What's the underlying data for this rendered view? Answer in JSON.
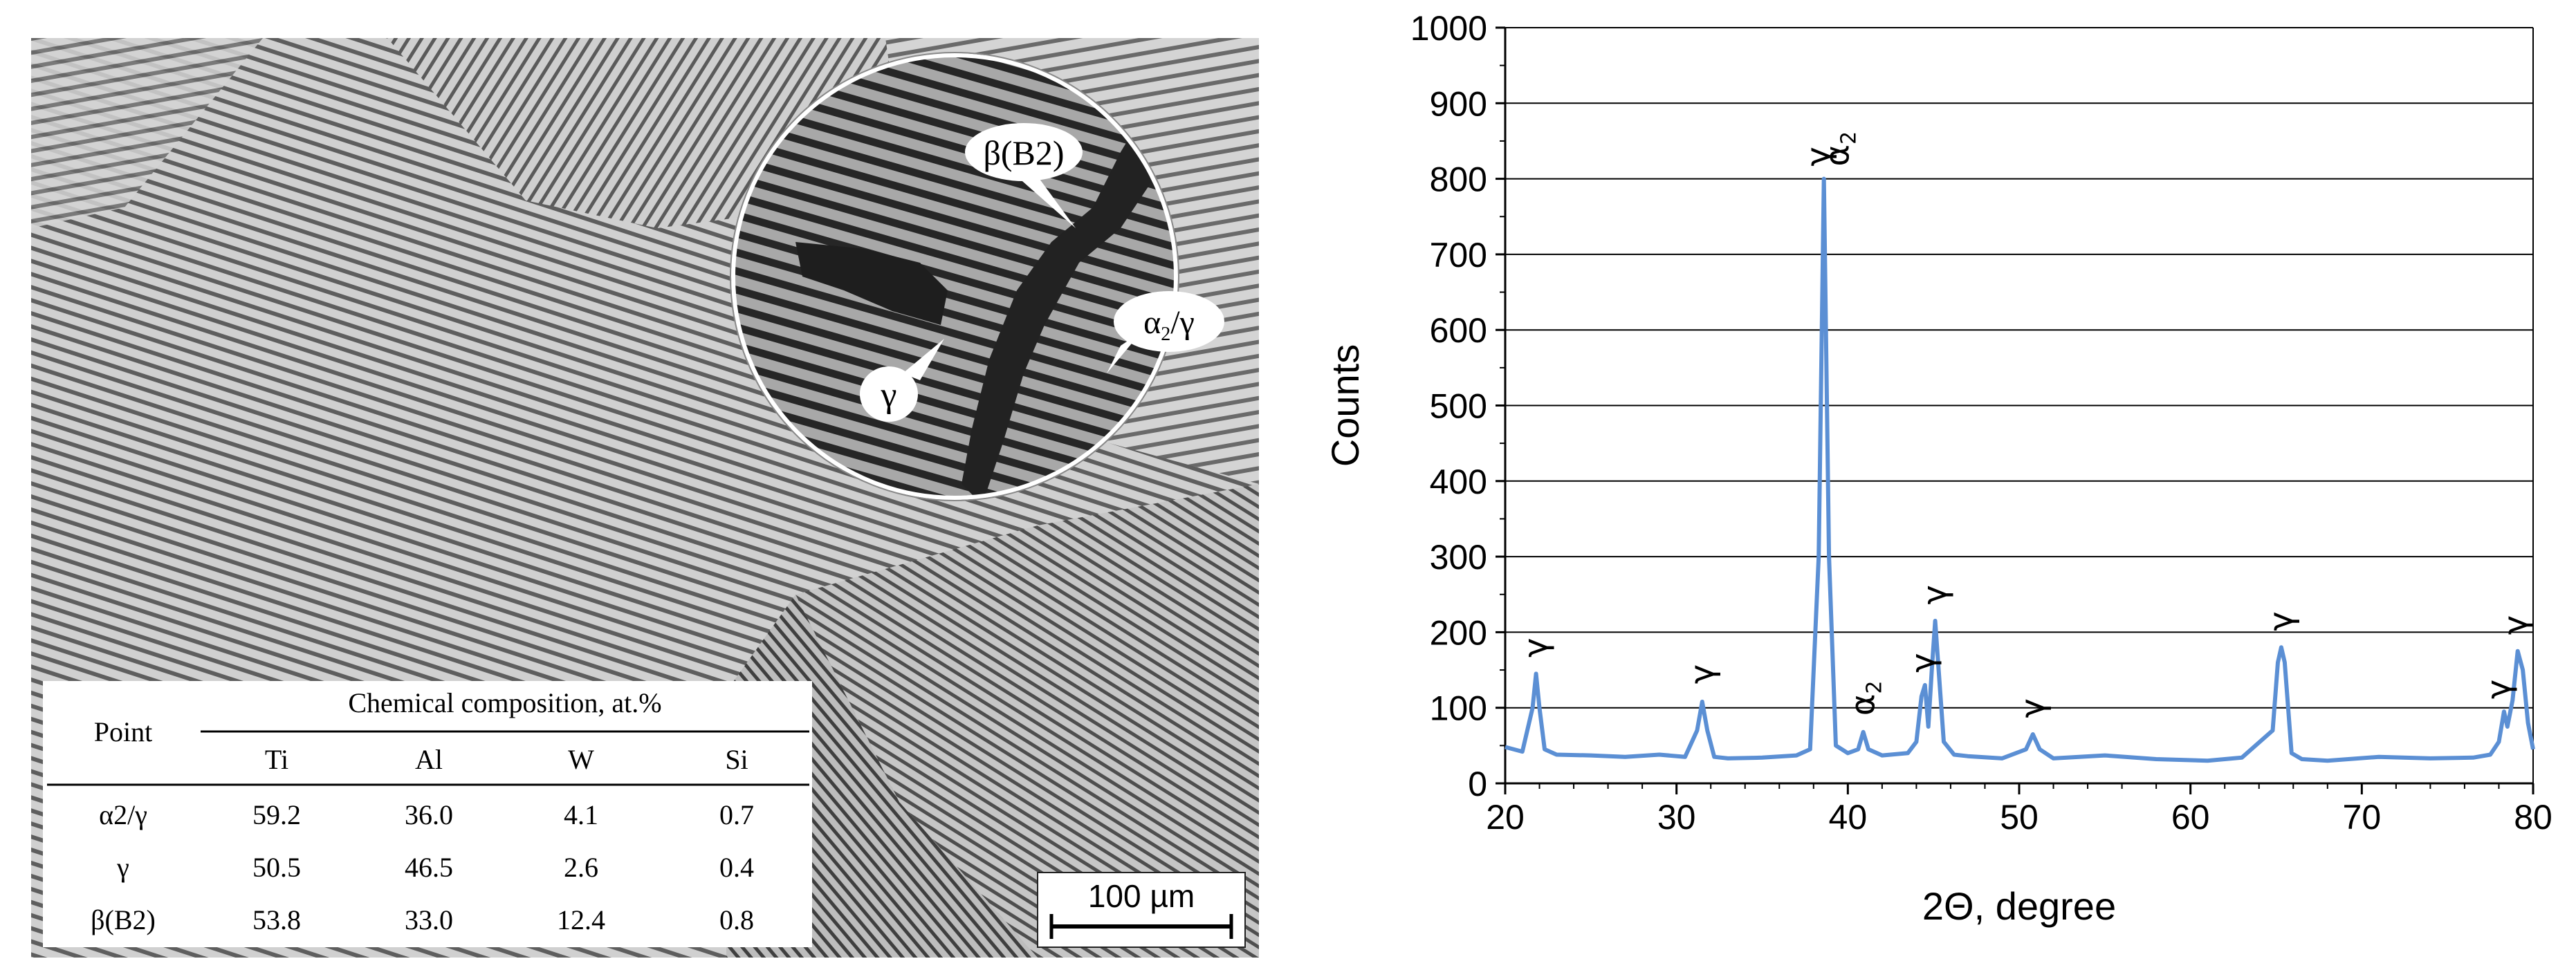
{
  "micrograph": {
    "inset_labels": {
      "beta": "β(B2)",
      "alpha2_gamma_a": "α",
      "alpha2_gamma_sub": "2",
      "alpha2_gamma_b": "/γ",
      "gamma": "γ"
    },
    "scale_bar": "100 µm",
    "table": {
      "col_point": "Point",
      "group_header": "Chemical composition, at.%",
      "elements": [
        "Ti",
        "Al",
        "W",
        "Si"
      ],
      "rows": [
        {
          "point": "α2/γ",
          "values": [
            "59.2",
            "36.0",
            "4.1",
            "0.7"
          ]
        },
        {
          "point": "γ",
          "values": [
            "50.5",
            "46.5",
            "2.6",
            "0.4"
          ]
        },
        {
          "point": "β(B2)",
          "values": [
            "53.8",
            "33.0",
            "12.4",
            "0.8"
          ]
        }
      ]
    }
  },
  "chart_data": {
    "type": "line",
    "xlabel": "2Θ, degree",
    "ylabel": "Counts",
    "xlim": [
      20,
      80
    ],
    "ylim": [
      0,
      1000
    ],
    "xticks": [
      20,
      30,
      40,
      50,
      60,
      70,
      80
    ],
    "yticks": [
      0,
      100,
      200,
      300,
      400,
      500,
      600,
      700,
      800,
      900,
      1000
    ],
    "grid": "horizontal",
    "color": "#5b8fd4",
    "series": [
      {
        "x": [
          20,
          21,
          21.6,
          21.8,
          22,
          22.3,
          23,
          25,
          27,
          29,
          30.5,
          31.2,
          31.5,
          31.8,
          32.2,
          33,
          35,
          37,
          37.8,
          38.3,
          38.6,
          38.9,
          39.3,
          40,
          40.6,
          40.9,
          41.2,
          42,
          43.5,
          44,
          44.3,
          44.5,
          44.7,
          44.9,
          45.1,
          45.3,
          45.6,
          46.2,
          47,
          49,
          50.4,
          50.8,
          51.2,
          52,
          55,
          58,
          61,
          63,
          64.8,
          65.1,
          65.3,
          65.5,
          65.9,
          66.5,
          68,
          71,
          74,
          76.5,
          77.5,
          78,
          78.3,
          78.5,
          78.8,
          79.1,
          79.4,
          79.7,
          80
        ],
        "y": [
          48,
          42,
          100,
          145,
          100,
          45,
          38,
          37,
          35,
          38,
          35,
          70,
          108,
          70,
          35,
          33,
          34,
          37,
          45,
          300,
          800,
          300,
          50,
          40,
          45,
          68,
          45,
          37,
          40,
          55,
          115,
          130,
          75,
          150,
          215,
          150,
          55,
          38,
          36,
          33,
          45,
          65,
          45,
          33,
          37,
          32,
          30,
          34,
          70,
          160,
          180,
          160,
          40,
          32,
          30,
          35,
          33,
          34,
          38,
          55,
          95,
          75,
          110,
          175,
          150,
          80,
          45
        ]
      }
    ],
    "annotations": [
      {
        "text": "γ",
        "x": 21.8,
        "y": 150
      },
      {
        "text": "γ",
        "x": 31.5,
        "y": 115
      },
      {
        "text": "γ",
        "x": 38.3,
        "y": 800
      },
      {
        "text": "α2",
        "x": 39.4,
        "y": 800
      },
      {
        "text": "α2",
        "x": 40.9,
        "y": 73
      },
      {
        "text": "γ",
        "x": 44.4,
        "y": 130
      },
      {
        "text": "γ",
        "x": 45.1,
        "y": 220
      },
      {
        "text": "γ",
        "x": 50.8,
        "y": 70
      },
      {
        "text": "γ",
        "x": 65.3,
        "y": 185
      },
      {
        "text": "γ",
        "x": 78.0,
        "y": 95
      },
      {
        "text": "γ",
        "x": 79.0,
        "y": 180
      }
    ]
  }
}
